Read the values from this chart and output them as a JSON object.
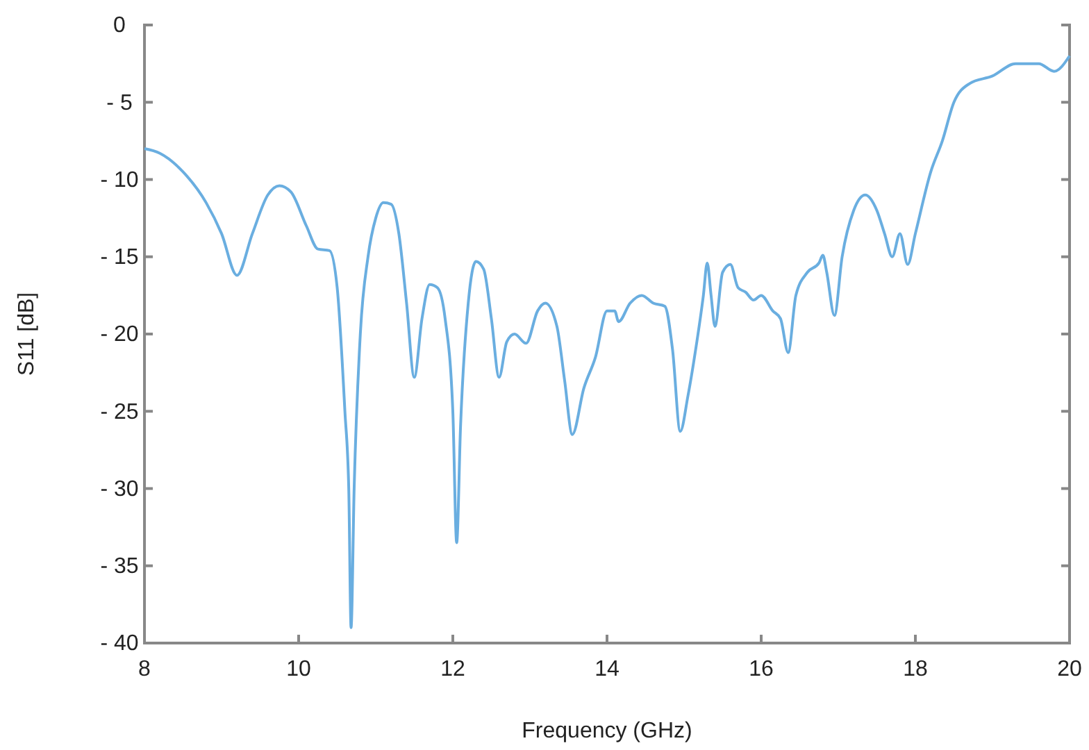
{
  "chart_data": {
    "type": "line",
    "xlabel": "Frequency (GHz)",
    "ylabel": "S11 [dB]",
    "xlim": [
      8,
      20
    ],
    "xticks": [
      8,
      10,
      12,
      14,
      16,
      18,
      20
    ],
    "ylim": [
      -40,
      0
    ],
    "yticks": [
      {
        "value": -40,
        "label": "- 40"
      },
      {
        "value": -35,
        "label": "- 35"
      },
      {
        "value": -30,
        "label": "- 30"
      },
      {
        "value": -25,
        "label": "- 25"
      },
      {
        "value": -20,
        "label": "- 20"
      },
      {
        "value": -15,
        "label": "- 15"
      },
      {
        "value": -10,
        "label": "- 10"
      },
      {
        "value": -5,
        "label": "- 5"
      },
      0
    ],
    "grid": false,
    "marker": "none",
    "line_style": "solid",
    "series": [
      {
        "color": "#6aaee0",
        "x": [
          8.0,
          8.2,
          8.5,
          8.8,
          9.0,
          9.2,
          9.4,
          9.6,
          9.75,
          9.9,
          10.1,
          10.25,
          10.4,
          10.5,
          10.6,
          10.65,
          10.68,
          10.72,
          10.8,
          10.9,
          11.0,
          11.1,
          11.2,
          11.3,
          11.4,
          11.5,
          11.6,
          11.7,
          11.8,
          11.9,
          12.0,
          12.05,
          12.1,
          12.2,
          12.3,
          12.4,
          12.5,
          12.6,
          12.7,
          12.8,
          12.95,
          13.1,
          13.2,
          13.35,
          13.45,
          13.55,
          13.7,
          13.85,
          14.0,
          14.1,
          14.15,
          14.3,
          14.45,
          14.6,
          14.75,
          14.85,
          14.95,
          15.05,
          15.15,
          15.25,
          15.3,
          15.35,
          15.4,
          15.5,
          15.6,
          15.7,
          15.8,
          15.9,
          16.0,
          16.15,
          16.25,
          16.35,
          16.45,
          16.6,
          16.75,
          16.8,
          16.85,
          16.95,
          17.05,
          17.2,
          17.35,
          17.5,
          17.6,
          17.7,
          17.8,
          17.9,
          18.0,
          18.2,
          18.35,
          18.5,
          18.7,
          19.0,
          19.3,
          19.6,
          19.8,
          20.0
        ],
        "values": [
          -8.0,
          -8.3,
          -9.5,
          -11.5,
          -13.5,
          -16.2,
          -13.5,
          -11,
          -10.4,
          -10.8,
          -13,
          -14.5,
          -14.6,
          -17,
          -25,
          -30,
          -39,
          -30,
          -20,
          -15,
          -12.5,
          -11.5,
          -11.6,
          -13.5,
          -18,
          -22.8,
          -19,
          -16.8,
          -17,
          -19,
          -25,
          -33.5,
          -26,
          -18,
          -15.3,
          -15.8,
          -19,
          -22.8,
          -20.5,
          -20,
          -20.6,
          -18.5,
          -18,
          -19.5,
          -23,
          -26.5,
          -23.5,
          -21.5,
          -18.5,
          -18.5,
          -19.2,
          -18,
          -17.5,
          -18,
          -18.2,
          -21,
          -26.3,
          -24,
          -21,
          -17.5,
          -15.4,
          -17.5,
          -19.5,
          -16,
          -15.5,
          -17,
          -17.3,
          -17.8,
          -17.5,
          -18.5,
          -19,
          -21.2,
          -17.5,
          -16,
          -15.4,
          -14.9,
          -16,
          -18.8,
          -15,
          -12,
          -11,
          -12,
          -13.5,
          -15,
          -13.5,
          -15.5,
          -13.5,
          -9.5,
          -7.5,
          -5,
          -3.8,
          -3.3,
          -2.5,
          -2.5,
          -3,
          -2
        ]
      }
    ]
  }
}
